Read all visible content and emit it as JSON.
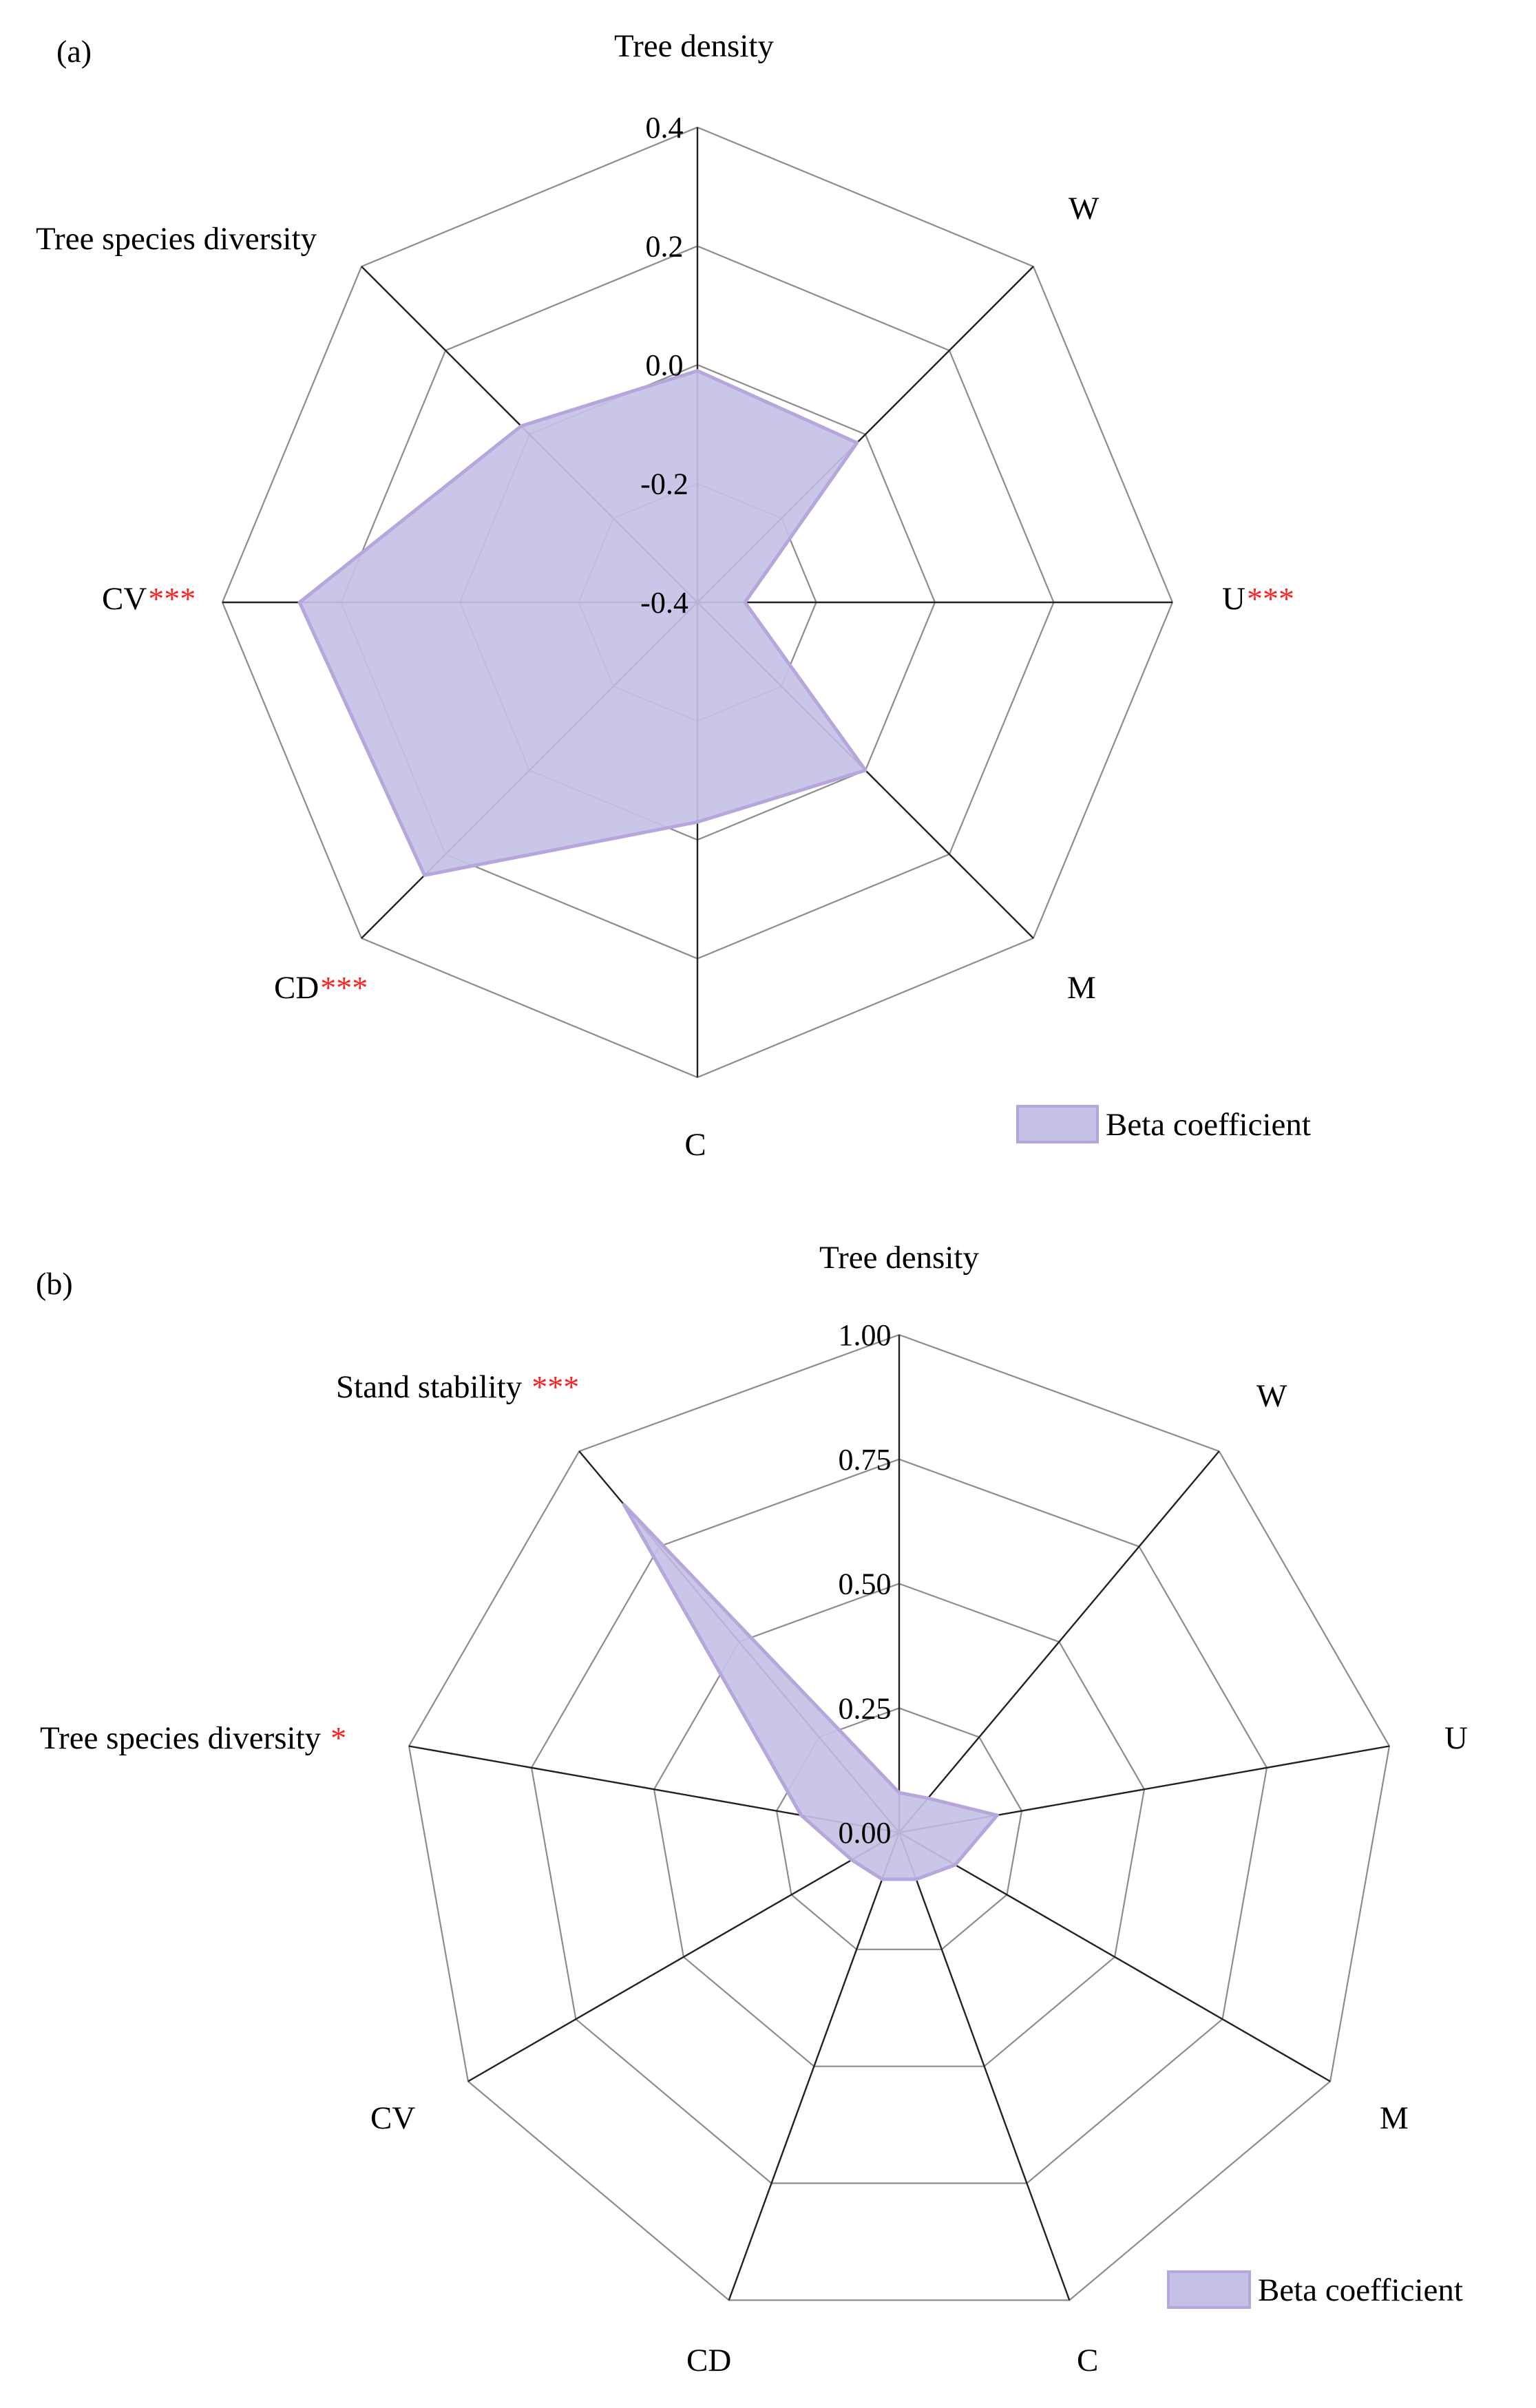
{
  "colors": {
    "fill": "#c5c1e6",
    "stroke": "#b7a6dc",
    "grid": "#8c8c8c",
    "axis": "#222222",
    "significance": "#ff2020"
  },
  "chart_data": [
    {
      "panel": "(a)",
      "type": "radar",
      "axes": [
        {
          "label": "Tree density",
          "sig": ""
        },
        {
          "label": "W",
          "sig": ""
        },
        {
          "label": "U",
          "sig": "***"
        },
        {
          "label": "M",
          "sig": ""
        },
        {
          "label": "C",
          "sig": ""
        },
        {
          "label": "CD",
          "sig": "***"
        },
        {
          "label": "CV",
          "sig": "***"
        },
        {
          "label": "Tree species diversity",
          "sig": ""
        }
      ],
      "series": [
        {
          "name": "Beta coefficient",
          "values": [
            -0.01,
            -0.02,
            -0.32,
            0.0,
            -0.03,
            0.25,
            0.27,
            0.02
          ]
        }
      ],
      "rlim": [
        -0.4,
        0.4
      ],
      "ticks": [
        "0.4",
        "0.2",
        "0.0",
        "-0.2",
        "-0.4"
      ],
      "legend": "Beta coefficient"
    },
    {
      "panel": "(b)",
      "type": "radar",
      "axes": [
        {
          "label": "Tree density",
          "sig": ""
        },
        {
          "label": "W",
          "sig": ""
        },
        {
          "label": "U",
          "sig": ""
        },
        {
          "label": "M",
          "sig": ""
        },
        {
          "label": "C",
          "sig": ""
        },
        {
          "label": "CD",
          "sig": ""
        },
        {
          "label": "CV",
          "sig": ""
        },
        {
          "label": "Tree species diversity",
          "sig": "*"
        },
        {
          "label": "Stand stability",
          "sig": "***"
        }
      ],
      "series": [
        {
          "name": "Beta coefficient",
          "values": [
            0.08,
            0.09,
            0.2,
            0.13,
            0.1,
            0.1,
            0.11,
            0.2,
            0.86
          ]
        }
      ],
      "rlim": [
        0,
        1
      ],
      "ticks": [
        "1.00",
        "0.75",
        "0.50",
        "0.25",
        "0.00"
      ],
      "legend": "Beta coefficient"
    }
  ]
}
